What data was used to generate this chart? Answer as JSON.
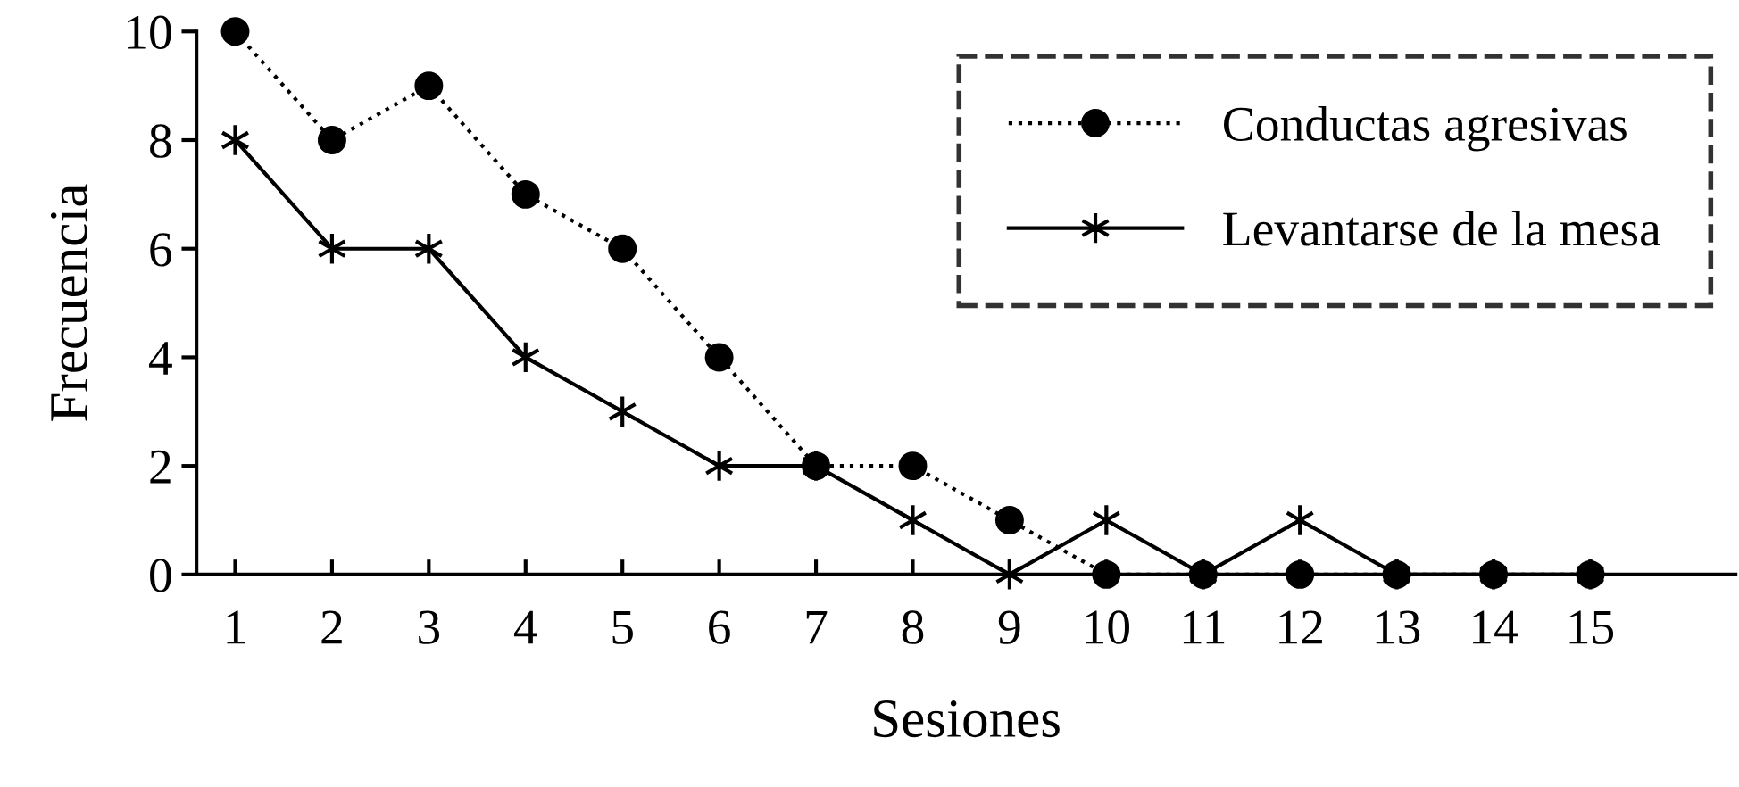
{
  "chart_data": {
    "type": "line",
    "xlabel": "Sesiones",
    "ylabel": "Frecuencia",
    "x": [
      1,
      2,
      3,
      4,
      5,
      6,
      7,
      8,
      9,
      10,
      11,
      12,
      13,
      14,
      15
    ],
    "series": [
      {
        "name": "Conductas agresivas",
        "color": "#000000",
        "marker": "circle",
        "line_style": "dotted",
        "values": [
          10,
          8,
          9,
          7,
          6,
          4,
          2,
          2,
          1,
          0,
          0,
          0,
          0,
          0,
          0
        ]
      },
      {
        "name": "Levantarse de la mesa",
        "color": "#000000",
        "marker": "cross",
        "line_style": "solid",
        "values": [
          8,
          6,
          6,
          4,
          3,
          2,
          2,
          1,
          0,
          1,
          0,
          1,
          0,
          0,
          0
        ]
      }
    ],
    "xlim": [
      0.6,
      16.5
    ],
    "xticks": [
      1,
      2,
      3,
      4,
      5,
      6,
      7,
      8,
      9,
      10,
      11,
      12,
      13,
      14,
      15
    ],
    "ylim": [
      0,
      10
    ],
    "yticks": [
      0,
      2,
      4,
      6,
      8,
      10
    ],
    "grid": false,
    "legend": "top right"
  }
}
